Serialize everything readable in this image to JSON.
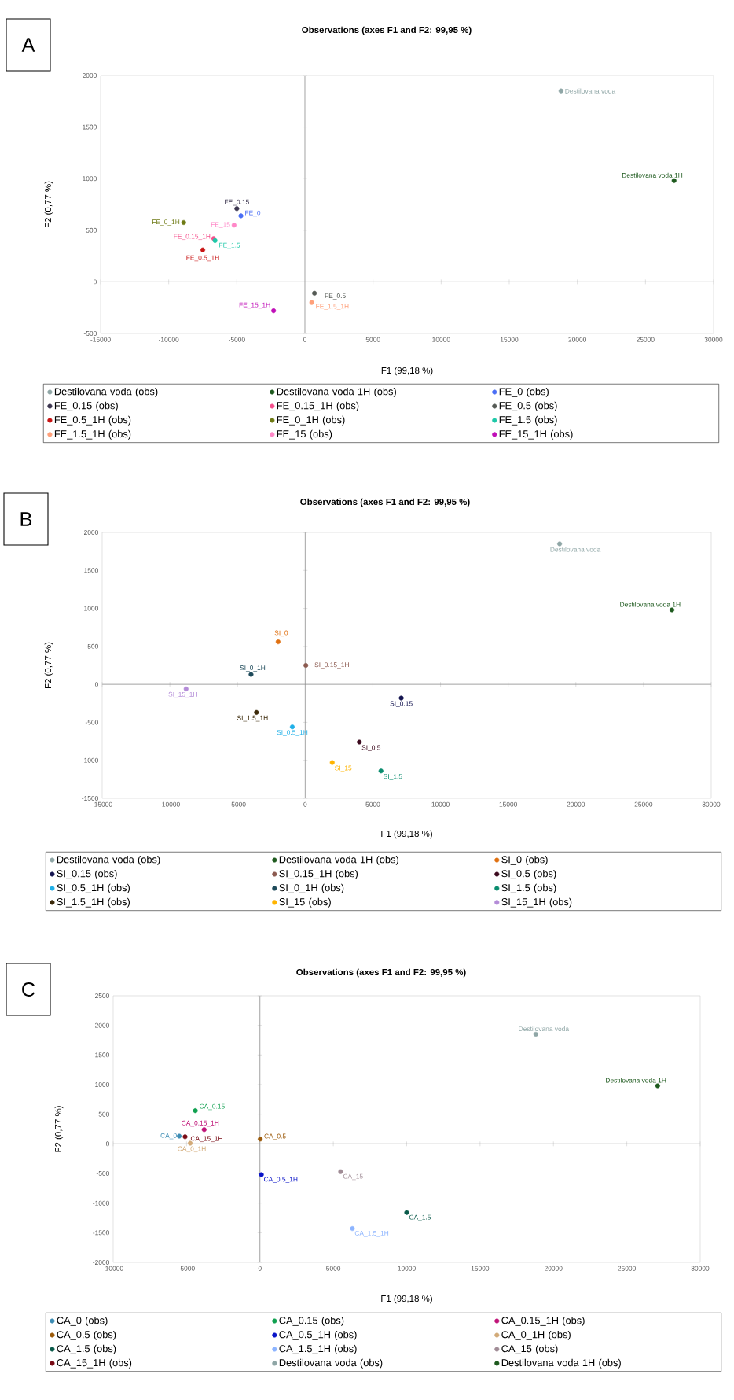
{
  "chart_data": [
    {
      "type": "scatter",
      "title": "Observations (axes F1 and F2: 99,95 %)",
      "xlabel": "F1 (99,18 %)",
      "ylabel": "F2 (0,77 %)",
      "xlim": [
        -15000,
        30000
      ],
      "ylim": [
        -500,
        2000
      ],
      "xticks": [
        -15000,
        -10000,
        -5000,
        0,
        5000,
        10000,
        15000,
        20000,
        25000,
        30000
      ],
      "yticks": [
        -500,
        0,
        500,
        1000,
        1500,
        2000
      ],
      "marker": "circle",
      "legend": "bottom",
      "annotations": [
        "A",
        {
          "text": "Destilovana voda",
          "x": 18800,
          "y": 1850
        },
        {
          "text": "Destilovana voda 1H",
          "x": 27100,
          "y": 980
        },
        {
          "text": "FE_0",
          "x": -4700,
          "y": 640
        },
        {
          "text": "FE_0.15",
          "x": -5000,
          "y": 710
        },
        {
          "text": "FE_0.15_1H",
          "x": -6700,
          "y": 420
        },
        {
          "text": "FE_0.5",
          "x": 700,
          "y": -110
        },
        {
          "text": "FE_0.5_1H",
          "x": -7500,
          "y": 310
        },
        {
          "text": "FE_0_1H",
          "x": -8900,
          "y": 575
        },
        {
          "text": "FE_1.5",
          "x": -6600,
          "y": 400
        },
        {
          "text": "FE_1.5_1H",
          "x": 500,
          "y": -200
        },
        {
          "text": "FE_15",
          "x": -5200,
          "y": 550
        },
        {
          "text": "FE_15_1H",
          "x": -2300,
          "y": -280
        }
      ],
      "series": [
        {
          "name": "Destilovana voda (obs)",
          "color": "#8fa6a6",
          "x": [
            18800
          ],
          "values": [
            1850
          ]
        },
        {
          "name": "Destilovana voda 1H (obs)",
          "color": "#1e5a1e",
          "x": [
            27100
          ],
          "values": [
            980
          ]
        },
        {
          "name": "FE_0 (obs)",
          "color": "#4a6ef5",
          "x": [
            -4700
          ],
          "values": [
            640
          ]
        },
        {
          "name": "FE_0.15 (obs)",
          "color": "#3c3650",
          "x": [
            -5000
          ],
          "values": [
            710
          ]
        },
        {
          "name": "FE_0.15_1H (obs)",
          "color": "#f5508c",
          "x": [
            -6700
          ],
          "values": [
            420
          ]
        },
        {
          "name": "FE_0.5 (obs)",
          "color": "#555a55",
          "x": [
            700
          ],
          "values": [
            -110
          ]
        },
        {
          "name": "FE_0.5_1H (obs)",
          "color": "#c81414",
          "x": [
            -7500
          ],
          "values": [
            310
          ]
        },
        {
          "name": "FE_0_1H (obs)",
          "color": "#6e7a14",
          "x": [
            -8900
          ],
          "values": [
            575
          ]
        },
        {
          "name": "FE_1.5 (obs)",
          "color": "#1ec8a8",
          "x": [
            -6600
          ],
          "values": [
            400
          ]
        },
        {
          "name": "FE_1.5_1H (obs)",
          "color": "#ffa07a",
          "x": [
            500
          ],
          "values": [
            -200
          ]
        },
        {
          "name": "FE_15 (obs)",
          "color": "#ff88c8",
          "x": [
            -5200
          ],
          "values": [
            550
          ]
        },
        {
          "name": "FE_15_1H (obs)",
          "color": "#c010b8",
          "x": [
            -2300
          ],
          "values": [
            -280
          ]
        }
      ]
    },
    {
      "type": "scatter",
      "title": "Observations (axes F1 and F2: 99,95 %)",
      "xlabel": "F1 (99,18 %)",
      "ylabel": "F2 (0,77 %)",
      "xlim": [
        -15000,
        30000
      ],
      "ylim": [
        -1500,
        2000
      ],
      "xticks": [
        -15000,
        -10000,
        -5000,
        0,
        5000,
        10000,
        15000,
        20000,
        25000,
        30000
      ],
      "yticks": [
        -1500,
        -1000,
        -500,
        0,
        500,
        1000,
        1500,
        2000
      ],
      "marker": "circle",
      "legend": "bottom",
      "annotations": [
        "B",
        {
          "text": "Destilovana voda",
          "x": 18800,
          "y": 1850
        },
        {
          "text": "Destilovana voda 1H",
          "x": 27100,
          "y": 980
        },
        {
          "text": "SI_0",
          "x": -2000,
          "y": 560
        },
        {
          "text": "SI_0.15",
          "x": 7100,
          "y": -180
        },
        {
          "text": "SI_0.15_1H",
          "x": 50,
          "y": 250
        },
        {
          "text": "SI_0.5",
          "x": 4000,
          "y": -760
        },
        {
          "text": "SI_0.5_1H",
          "x": -950,
          "y": -560
        },
        {
          "text": "SI_0_1H",
          "x": -4000,
          "y": 130
        },
        {
          "text": "SI_1.5",
          "x": 5600,
          "y": -1140
        },
        {
          "text": "SI_1.5_1H",
          "x": -3600,
          "y": -370
        },
        {
          "text": "SI_15",
          "x": 2000,
          "y": -1030
        },
        {
          "text": "SI_15_1H",
          "x": -8800,
          "y": -60
        }
      ],
      "series": [
        {
          "name": "Destilovana voda (obs)",
          "color": "#8fa6a6",
          "x": [
            18800
          ],
          "values": [
            1850
          ]
        },
        {
          "name": "Destilovana voda 1H (obs)",
          "color": "#1e5a1e",
          "x": [
            27100
          ],
          "values": [
            980
          ]
        },
        {
          "name": "SI_0 (obs)",
          "color": "#e07010",
          "x": [
            -2000
          ],
          "values": [
            560
          ]
        },
        {
          "name": "SI_0.15 (obs)",
          "color": "#141450",
          "x": [
            7100
          ],
          "values": [
            -180
          ]
        },
        {
          "name": "SI_0.15_1H (obs)",
          "color": "#8c5a50",
          "x": [
            50
          ],
          "values": [
            250
          ]
        },
        {
          "name": "SI_0.5 (obs)",
          "color": "#3c0a1e",
          "x": [
            4000
          ],
          "values": [
            -760
          ]
        },
        {
          "name": "SI_0.5_1H (obs)",
          "color": "#20b0e8",
          "x": [
            -950
          ],
          "values": [
            -560
          ]
        },
        {
          "name": "SI_0_1H (obs)",
          "color": "#1e4a5a",
          "x": [
            -4000
          ],
          "values": [
            130
          ]
        },
        {
          "name": "SI_1.5 (obs)",
          "color": "#0a8c6e",
          "x": [
            5600
          ],
          "values": [
            -1140
          ]
        },
        {
          "name": "SI_1.5_1H (obs)",
          "color": "#3c2a0a",
          "x": [
            -3600
          ],
          "values": [
            -370
          ]
        },
        {
          "name": "SI_15 (obs)",
          "color": "#ffb400",
          "x": [
            2000
          ],
          "values": [
            -1030
          ]
        },
        {
          "name": "SI_15_1H (obs)",
          "color": "#b48cd8",
          "x": [
            -8800
          ],
          "values": [
            -60
          ]
        }
      ]
    },
    {
      "type": "scatter",
      "title": "Observations (axes F1 and F2: 99,95 %)",
      "xlabel": "F1 (99,18 %)",
      "ylabel": "F2 (0,77 %)",
      "xlim": [
        -10000,
        30000
      ],
      "ylim": [
        -2000,
        2500
      ],
      "xticks": [
        -10000,
        -5000,
        0,
        5000,
        10000,
        15000,
        20000,
        25000,
        30000
      ],
      "yticks": [
        -2000,
        -1500,
        -1000,
        -500,
        0,
        500,
        1000,
        1500,
        2000,
        2500
      ],
      "marker": "circle",
      "legend": "bottom",
      "annotations": [
        "C",
        {
          "text": "CA_0",
          "x": -5500,
          "y": 130
        },
        {
          "text": "CA_0.15",
          "x": -4400,
          "y": 560
        },
        {
          "text": "CA_0.15_1H",
          "x": -3800,
          "y": 240
        },
        {
          "text": "CA_0.5",
          "x": 20,
          "y": 80
        },
        {
          "text": "CA_0.5_1H",
          "x": 100,
          "y": -520
        },
        {
          "text": "CA_0_1H",
          "x": -4750,
          "y": 10
        },
        {
          "text": "CA_1.5",
          "x": 10000,
          "y": -1160
        },
        {
          "text": "CA_1.5_1H",
          "x": 6300,
          "y": -1430
        },
        {
          "text": "CA_15",
          "x": 5500,
          "y": -470
        },
        {
          "text": "CA_15_1H",
          "x": -5100,
          "y": 120
        },
        {
          "text": "Destilovana voda",
          "x": 18800,
          "y": 1850
        },
        {
          "text": "Destilovana voda 1H",
          "x": 27100,
          "y": 980
        }
      ],
      "series": [
        {
          "name": "CA_0 (obs)",
          "color": "#3c8cb4",
          "x": [
            -5500
          ],
          "values": [
            130
          ]
        },
        {
          "name": "CA_0.15 (obs)",
          "color": "#10a050",
          "x": [
            -4400
          ],
          "values": [
            560
          ]
        },
        {
          "name": "CA_0.15_1H (obs)",
          "color": "#c01478",
          "x": [
            -3800
          ],
          "values": [
            240
          ]
        },
        {
          "name": "CA_0.5 (obs)",
          "color": "#9c5a0a",
          "x": [
            20
          ],
          "values": [
            80
          ]
        },
        {
          "name": "CA_0.5_1H (obs)",
          "color": "#0a14c8",
          "x": [
            100
          ],
          "values": [
            -520
          ]
        },
        {
          "name": "CA_0_1H (obs)",
          "color": "#d2aa78",
          "x": [
            -4750
          ],
          "values": [
            10
          ]
        },
        {
          "name": "CA_1.5 (obs)",
          "color": "#0a5a4a",
          "x": [
            10000
          ],
          "values": [
            -1160
          ]
        },
        {
          "name": "CA_1.5_1H (obs)",
          "color": "#8cb4ff",
          "x": [
            6300
          ],
          "values": [
            -1430
          ]
        },
        {
          "name": "CA_15 (obs)",
          "color": "#a08c96",
          "x": [
            5500
          ],
          "values": [
            -470
          ]
        },
        {
          "name": "CA_15_1H (obs)",
          "color": "#780a14",
          "x": [
            -5100
          ],
          "values": [
            120
          ]
        },
        {
          "name": "Destilovana voda (obs)",
          "color": "#8fa6a6",
          "x": [
            18800
          ],
          "values": [
            1850
          ]
        },
        {
          "name": "Destilovana voda 1H (obs)",
          "color": "#1e5a1e",
          "x": [
            27100
          ],
          "values": [
            980
          ]
        }
      ]
    }
  ]
}
